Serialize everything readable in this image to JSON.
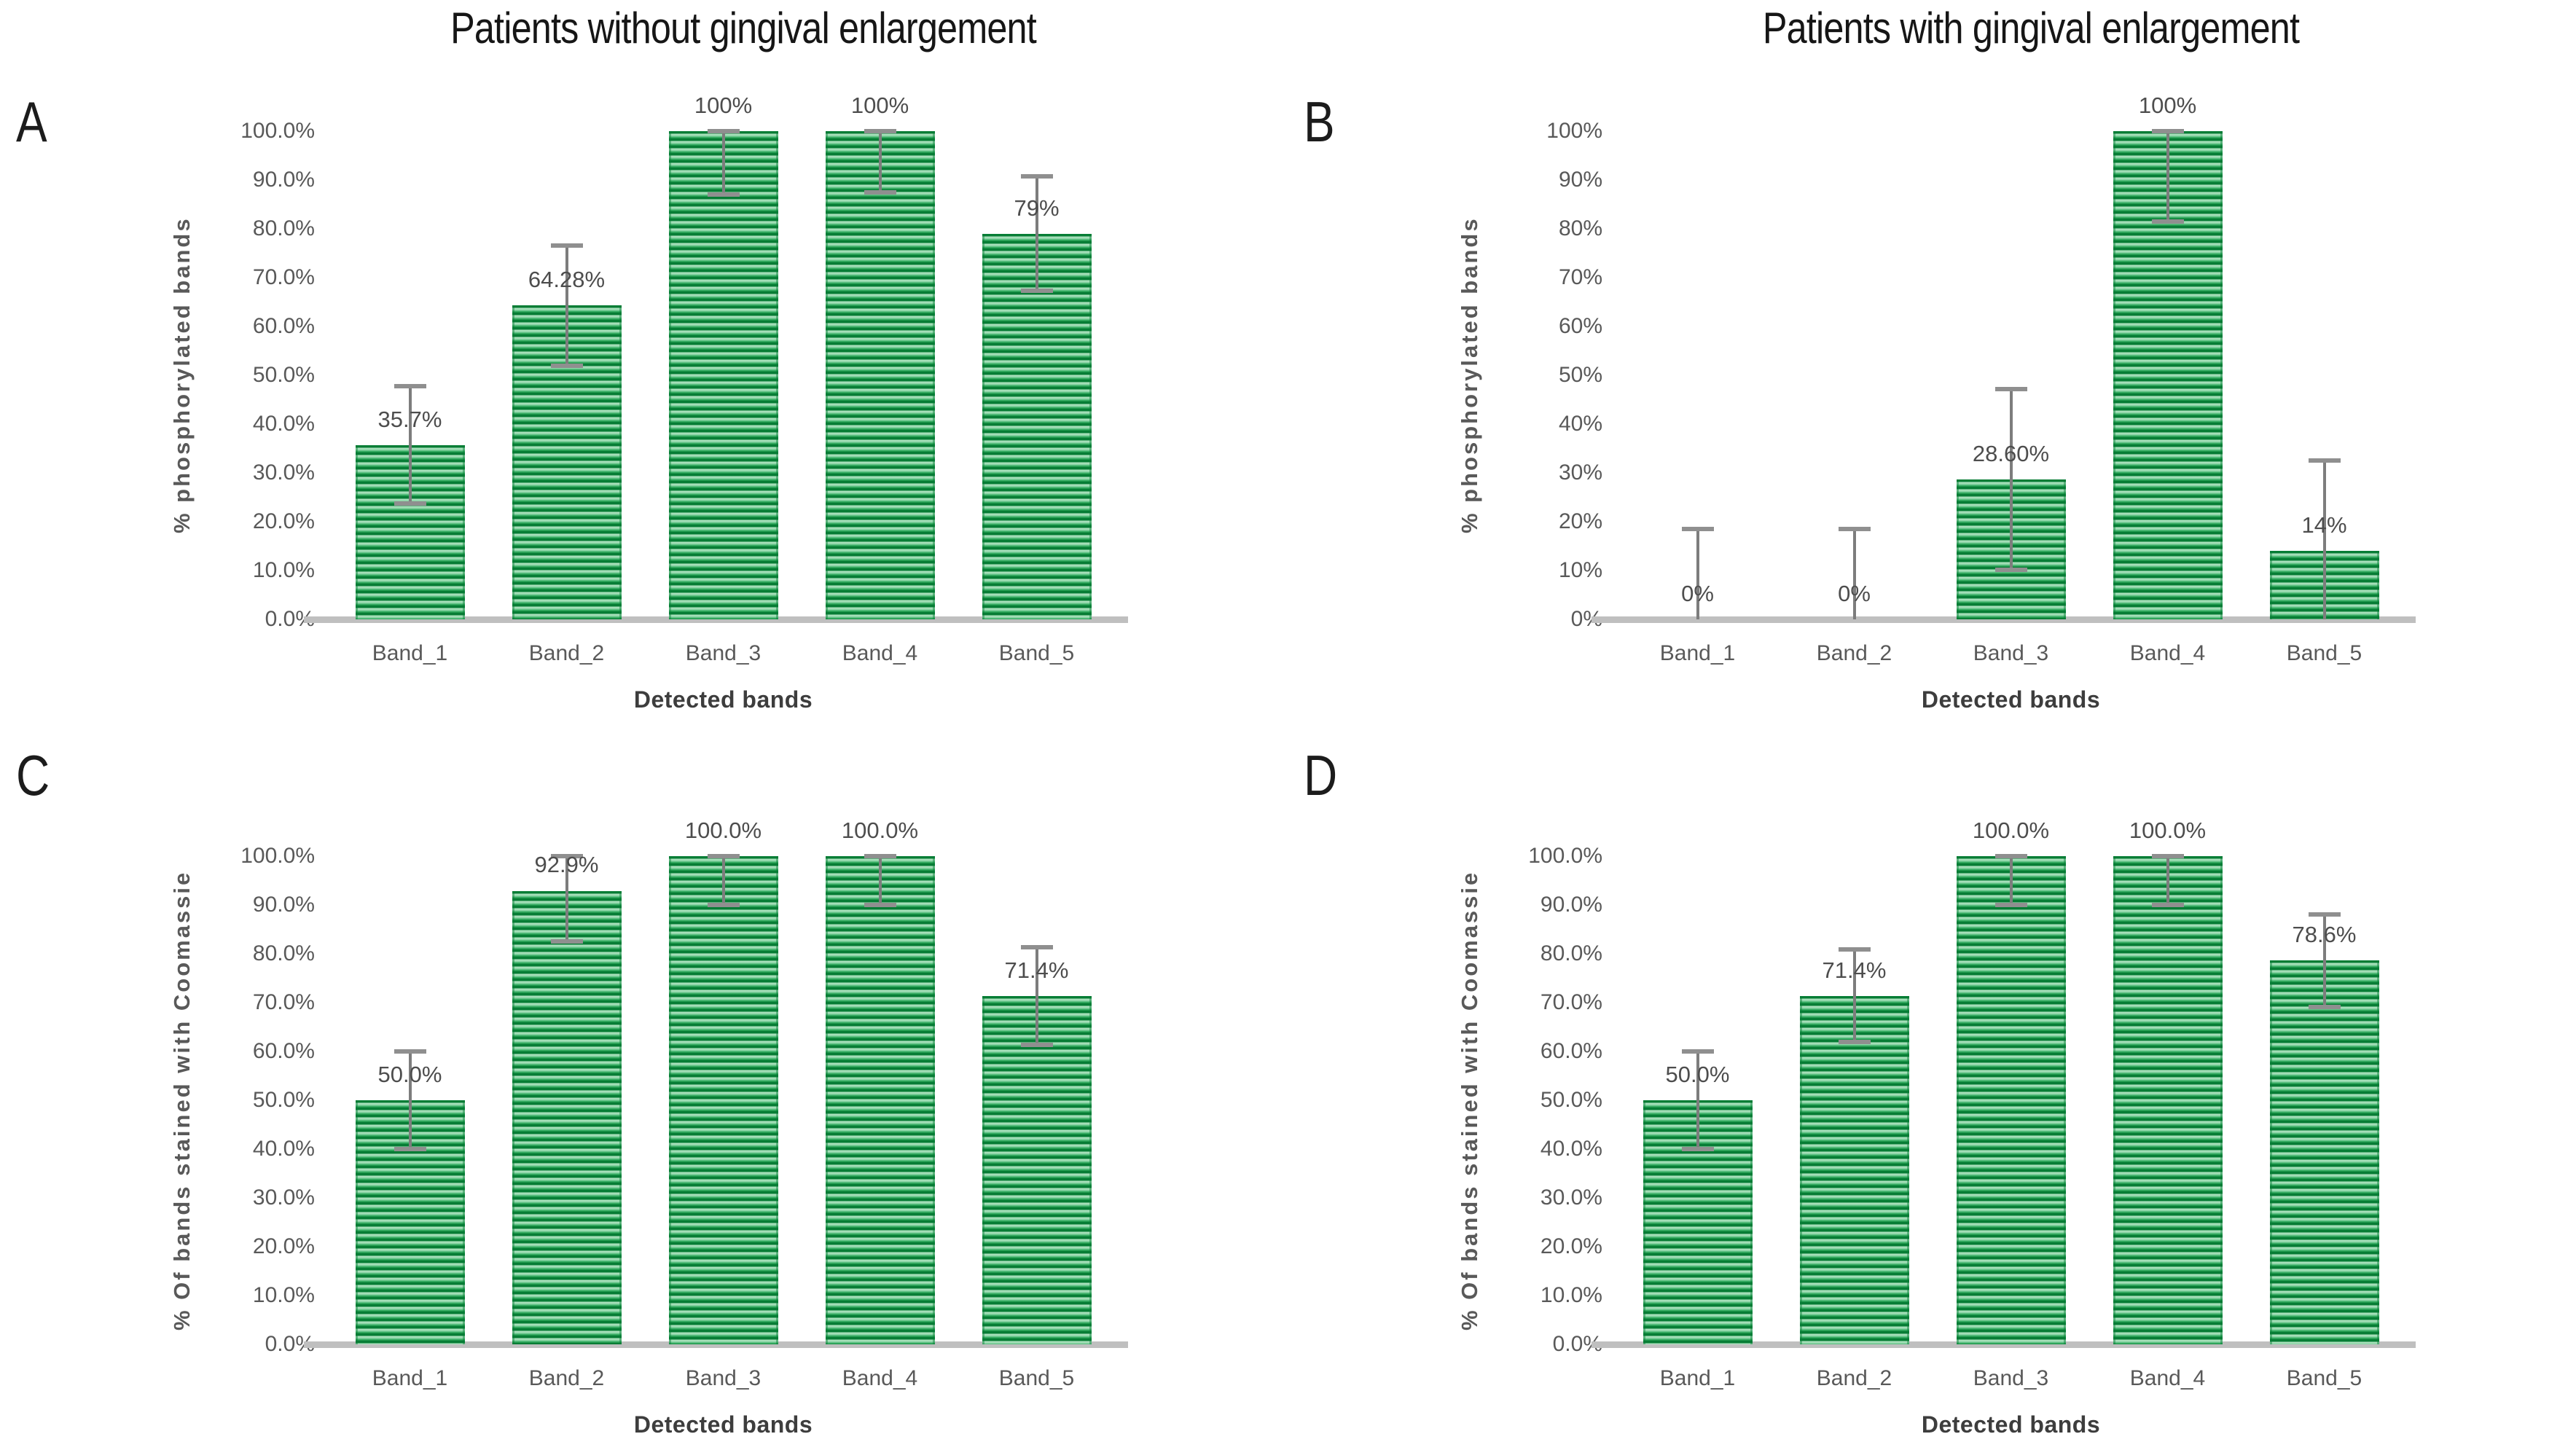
{
  "figure_type": "2x2 bar chart panel figure",
  "colors": {
    "bar_stripe_dark": "#077d35",
    "bar_stripe_light": "#b9e7c7",
    "bar_stripe_mid": "#3fb26a",
    "error_bar": "#7d7d7d",
    "axis_line": "#bfbfbf",
    "tick_text": "#595959",
    "data_label_text": "#4d4d4d",
    "title_text": "#161616"
  },
  "chart_data": [
    {
      "panel": "A",
      "type": "bar",
      "title": "Patients without gingival enlargement",
      "xlabel": "Detected bands",
      "ylabel": "% phosphorylated bands",
      "categories": [
        "Band_1",
        "Band_2",
        "Band_3",
        "Band_4",
        "Band_5"
      ],
      "values": [
        35.7,
        64.28,
        100,
        100,
        79
      ],
      "labels": [
        "35.7%",
        "64.28%",
        "100%",
        "100%",
        "79%"
      ],
      "error_minus": [
        12,
        12.3,
        13,
        12.5,
        11.7
      ],
      "error_plus": [
        12,
        12.3,
        0,
        0,
        11.7
      ],
      "y_ticks": [
        "100.0%",
        "90.0%",
        "80.0%",
        "70.0%",
        "60.0%",
        "50.0%",
        "40.0%",
        "30.0%",
        "20.0%",
        "10.0%",
        "0.0%"
      ],
      "ylim": [
        0,
        100
      ],
      "grid": false,
      "legend": false
    },
    {
      "panel": "B",
      "type": "bar",
      "title": "Patients with gingival enlargement",
      "xlabel": "Detected bands",
      "ylabel": "% phosphorylated bands",
      "categories": [
        "Band_1",
        "Band_2",
        "Band_3",
        "Band_4",
        "Band_5"
      ],
      "values": [
        0,
        0,
        28.6,
        100,
        14
      ],
      "labels": [
        "0%",
        "0%",
        "28.60%",
        "100%",
        "14%"
      ],
      "error_minus": [
        0,
        0,
        18.5,
        18.5,
        14
      ],
      "error_plus": [
        18.5,
        18.5,
        18.5,
        0,
        18.5
      ],
      "y_ticks": [
        "100%",
        "90%",
        "80%",
        "70%",
        "60%",
        "50%",
        "40%",
        "30%",
        "20%",
        "10%",
        "0%"
      ],
      "ylim": [
        0,
        100
      ],
      "grid": false,
      "legend": false
    },
    {
      "panel": "C",
      "type": "bar",
      "title": "",
      "xlabel": "Detected bands",
      "ylabel": "% Of bands stained with Coomassie",
      "categories": [
        "Band_1",
        "Band_2",
        "Band_3",
        "Band_4",
        "Band_5"
      ],
      "values": [
        50,
        92.9,
        100,
        100,
        71.4
      ],
      "labels": [
        "50.0%",
        "92.9%",
        "100.0%",
        "100.0%",
        "71.4%"
      ],
      "error_minus": [
        10,
        10.4,
        10,
        10,
        10
      ],
      "error_plus": [
        10,
        7.6,
        0,
        0,
        10
      ],
      "y_ticks": [
        "100.0%",
        "90.0%",
        "80.0%",
        "70.0%",
        "60.0%",
        "50.0%",
        "40.0%",
        "30.0%",
        "20.0%",
        "10.0%",
        "0.0%"
      ],
      "ylim": [
        0,
        100
      ],
      "grid": false,
      "legend": false
    },
    {
      "panel": "D",
      "type": "bar",
      "title": "",
      "xlabel": "Detected bands",
      "ylabel": "% Of bands stained with Coomassie",
      "categories": [
        "Band_1",
        "Band_2",
        "Band_3",
        "Band_4",
        "Band_5"
      ],
      "values": [
        50,
        71.4,
        100,
        100,
        78.6
      ],
      "labels": [
        "50.0%",
        "71.4%",
        "100.0%",
        "100.0%",
        "78.6%"
      ],
      "error_minus": [
        10,
        9.5,
        10,
        10,
        9.5
      ],
      "error_plus": [
        10,
        9.5,
        0,
        0,
        9.5
      ],
      "y_ticks": [
        "100.0%",
        "90.0%",
        "80.0%",
        "70.0%",
        "60.0%",
        "50.0%",
        "40.0%",
        "30.0%",
        "20.0%",
        "10.0%",
        "0.0%"
      ],
      "ylim": [
        0,
        100
      ],
      "grid": false,
      "legend": false
    }
  ]
}
